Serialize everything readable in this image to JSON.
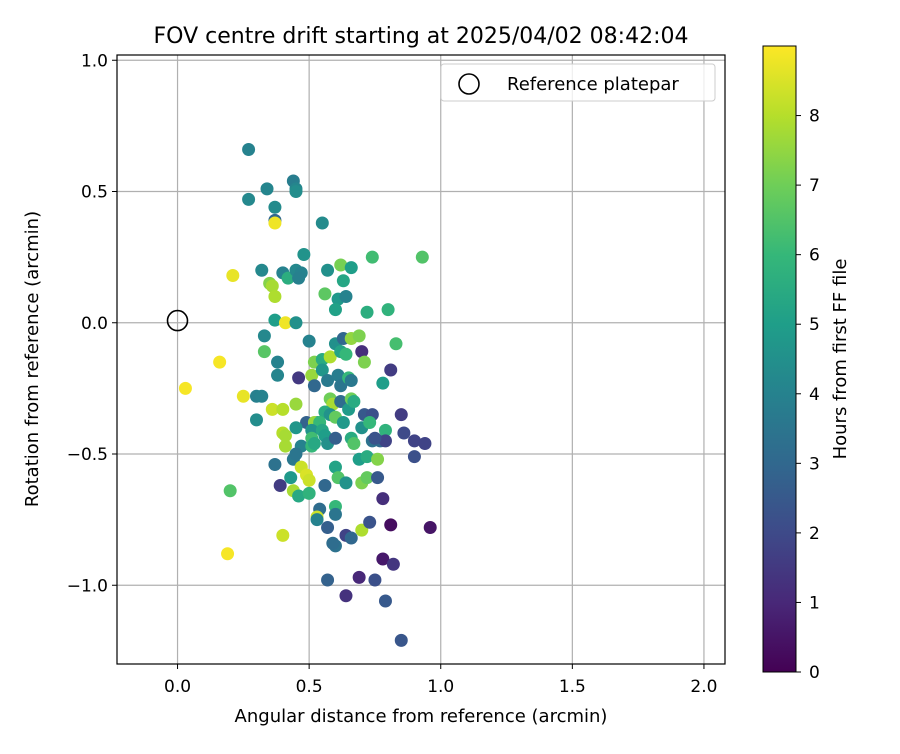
{
  "chart_data": {
    "type": "scatter",
    "title": "FOV centre drift starting at 2025/04/02 08:42:04",
    "xlabel": "Angular distance from reference (arcmin)",
    "ylabel": "Rotation from reference (arcmin)",
    "xlim": [
      -0.23,
      2.08
    ],
    "ylim": [
      -1.3,
      1.02
    ],
    "xticks": [
      0.0,
      0.5,
      1.0,
      1.5,
      2.0
    ],
    "xtick_labels": [
      "0.0",
      "0.5",
      "1.0",
      "1.5",
      "2.0"
    ],
    "yticks": [
      1.0,
      0.5,
      0.0,
      -0.5,
      -1.0
    ],
    "ytick_labels": [
      "1.0",
      "0.5",
      "0.0",
      "−0.5",
      "−1.0"
    ],
    "grid": true,
    "legend": {
      "location": "top-right",
      "entries": [
        "Reference platepar"
      ]
    },
    "reference_point": {
      "x": 0.0,
      "y": 0.0,
      "marker": "open-circle"
    },
    "colorbar": {
      "label": "Hours from first FF file",
      "colormap": "viridis",
      "range": [
        0,
        9
      ],
      "ticks": [
        0,
        1,
        2,
        3,
        4,
        5,
        6,
        7,
        8
      ],
      "tick_labels": [
        "0",
        "1",
        "2",
        "3",
        "4",
        "5",
        "6",
        "7",
        "8"
      ]
    },
    "points": [
      {
        "x": 0.27,
        "y": 0.66,
        "c": 4.0
      },
      {
        "x": 0.27,
        "y": 0.47,
        "c": 4.2
      },
      {
        "x": 0.34,
        "y": 0.51,
        "c": 4.1
      },
      {
        "x": 0.37,
        "y": 0.44,
        "c": 4.3
      },
      {
        "x": 0.37,
        "y": 0.39,
        "c": 3.0
      },
      {
        "x": 0.37,
        "y": 0.38,
        "c": 8.8
      },
      {
        "x": 0.44,
        "y": 0.54,
        "c": 3.8
      },
      {
        "x": 0.45,
        "y": 0.51,
        "c": 4.1
      },
      {
        "x": 0.45,
        "y": 0.5,
        "c": 4.4
      },
      {
        "x": 0.55,
        "y": 0.38,
        "c": 4.3
      },
      {
        "x": 0.48,
        "y": 0.26,
        "c": 4.6
      },
      {
        "x": 0.74,
        "y": 0.25,
        "c": 6.2
      },
      {
        "x": 0.93,
        "y": 0.25,
        "c": 6.5
      },
      {
        "x": 0.21,
        "y": 0.18,
        "c": 8.7
      },
      {
        "x": 0.32,
        "y": 0.2,
        "c": 4.2
      },
      {
        "x": 0.35,
        "y": 0.15,
        "c": 7.3
      },
      {
        "x": 0.36,
        "y": 0.14,
        "c": 7.8
      },
      {
        "x": 0.37,
        "y": 0.1,
        "c": 7.9
      },
      {
        "x": 0.4,
        "y": 0.19,
        "c": 4.0
      },
      {
        "x": 0.42,
        "y": 0.17,
        "c": 5.6
      },
      {
        "x": 0.45,
        "y": 0.2,
        "c": 4.2
      },
      {
        "x": 0.47,
        "y": 0.19,
        "c": 4.0
      },
      {
        "x": 0.46,
        "y": 0.17,
        "c": 3.9
      },
      {
        "x": 0.57,
        "y": 0.2,
        "c": 4.5
      },
      {
        "x": 0.62,
        "y": 0.22,
        "c": 7.1
      },
      {
        "x": 0.66,
        "y": 0.21,
        "c": 5.0
      },
      {
        "x": 0.63,
        "y": 0.16,
        "c": 5.3
      },
      {
        "x": 0.56,
        "y": 0.11,
        "c": 6.7
      },
      {
        "x": 0.61,
        "y": 0.09,
        "c": 4.8
      },
      {
        "x": 0.64,
        "y": 0.1,
        "c": 4.0
      },
      {
        "x": 0.6,
        "y": 0.05,
        "c": 5.1
      },
      {
        "x": 0.72,
        "y": 0.04,
        "c": 5.6
      },
      {
        "x": 0.8,
        "y": 0.05,
        "c": 5.8
      },
      {
        "x": 0.37,
        "y": 0.01,
        "c": 5.0
      },
      {
        "x": 0.41,
        "y": 0.0,
        "c": 8.8
      },
      {
        "x": 0.45,
        "y": 0.0,
        "c": 4.5
      },
      {
        "x": 0.33,
        "y": -0.05,
        "c": 4.2
      },
      {
        "x": 0.5,
        "y": -0.07,
        "c": 4.0
      },
      {
        "x": 0.33,
        "y": -0.11,
        "c": 6.6
      },
      {
        "x": 0.6,
        "y": -0.08,
        "c": 4.5
      },
      {
        "x": 0.63,
        "y": -0.06,
        "c": 3.0
      },
      {
        "x": 0.66,
        "y": -0.06,
        "c": 7.5
      },
      {
        "x": 0.69,
        "y": -0.05,
        "c": 7.2
      },
      {
        "x": 0.83,
        "y": -0.08,
        "c": 6.3
      },
      {
        "x": 0.16,
        "y": -0.15,
        "c": 8.9
      },
      {
        "x": 0.38,
        "y": -0.15,
        "c": 4.0
      },
      {
        "x": 0.38,
        "y": -0.2,
        "c": 4.1
      },
      {
        "x": 0.52,
        "y": -0.15,
        "c": 7.2
      },
      {
        "x": 0.55,
        "y": -0.14,
        "c": 5.5
      },
      {
        "x": 0.58,
        "y": -0.13,
        "c": 7.9
      },
      {
        "x": 0.62,
        "y": -0.11,
        "c": 5.2
      },
      {
        "x": 0.64,
        "y": -0.12,
        "c": 6.0
      },
      {
        "x": 0.7,
        "y": -0.11,
        "c": 1.2
      },
      {
        "x": 0.71,
        "y": -0.15,
        "c": 7.2
      },
      {
        "x": 0.81,
        "y": -0.18,
        "c": 1.6
      },
      {
        "x": 0.51,
        "y": -0.2,
        "c": 7.6
      },
      {
        "x": 0.55,
        "y": -0.18,
        "c": 4.7
      },
      {
        "x": 0.46,
        "y": -0.21,
        "c": 1.5
      },
      {
        "x": 0.52,
        "y": -0.24,
        "c": 3.0
      },
      {
        "x": 0.57,
        "y": -0.22,
        "c": 3.7
      },
      {
        "x": 0.61,
        "y": -0.2,
        "c": 3.8
      },
      {
        "x": 0.62,
        "y": -0.24,
        "c": 3.5
      },
      {
        "x": 0.65,
        "y": -0.21,
        "c": 6.0
      },
      {
        "x": 0.66,
        "y": -0.22,
        "c": 3.6
      },
      {
        "x": 0.78,
        "y": -0.23,
        "c": 5.0
      },
      {
        "x": 0.03,
        "y": -0.25,
        "c": 8.9
      },
      {
        "x": 0.25,
        "y": -0.28,
        "c": 8.7
      },
      {
        "x": 0.3,
        "y": -0.28,
        "c": 3.9
      },
      {
        "x": 0.32,
        "y": -0.28,
        "c": 4.0
      },
      {
        "x": 0.3,
        "y": -0.37,
        "c": 4.4
      },
      {
        "x": 0.36,
        "y": -0.33,
        "c": 8.3
      },
      {
        "x": 0.4,
        "y": -0.33,
        "c": 8.0
      },
      {
        "x": 0.45,
        "y": -0.31,
        "c": 7.6
      },
      {
        "x": 0.58,
        "y": -0.29,
        "c": 7.0
      },
      {
        "x": 0.59,
        "y": -0.31,
        "c": 7.8
      },
      {
        "x": 0.62,
        "y": -0.3,
        "c": 3.2
      },
      {
        "x": 0.65,
        "y": -0.33,
        "c": 4.9
      },
      {
        "x": 0.66,
        "y": -0.29,
        "c": 7.0
      },
      {
        "x": 0.67,
        "y": -0.3,
        "c": 5.5
      },
      {
        "x": 0.71,
        "y": -0.35,
        "c": 2.5
      },
      {
        "x": 0.74,
        "y": -0.35,
        "c": 2.2
      },
      {
        "x": 0.49,
        "y": -0.38,
        "c": 2.8
      },
      {
        "x": 0.53,
        "y": -0.38,
        "c": 4.7
      },
      {
        "x": 0.56,
        "y": -0.34,
        "c": 5.5
      },
      {
        "x": 0.58,
        "y": -0.35,
        "c": 4.6
      },
      {
        "x": 0.6,
        "y": -0.36,
        "c": 6.8
      },
      {
        "x": 0.52,
        "y": -0.38,
        "c": 7.6
      },
      {
        "x": 0.54,
        "y": -0.38,
        "c": 6.0
      },
      {
        "x": 0.4,
        "y": -0.42,
        "c": 8.0
      },
      {
        "x": 0.41,
        "y": -0.43,
        "c": 7.8
      },
      {
        "x": 0.45,
        "y": -0.4,
        "c": 4.7
      },
      {
        "x": 0.51,
        "y": -0.41,
        "c": 4.6
      },
      {
        "x": 0.51,
        "y": -0.44,
        "c": 6.2
      },
      {
        "x": 0.55,
        "y": -0.41,
        "c": 5.3
      },
      {
        "x": 0.56,
        "y": -0.43,
        "c": 5.0
      },
      {
        "x": 0.57,
        "y": -0.46,
        "c": 4.5
      },
      {
        "x": 0.6,
        "y": -0.44,
        "c": 2.7
      },
      {
        "x": 0.63,
        "y": -0.38,
        "c": 4.8
      },
      {
        "x": 0.7,
        "y": -0.4,
        "c": 4.5
      },
      {
        "x": 0.73,
        "y": -0.38,
        "c": 6.0
      },
      {
        "x": 0.77,
        "y": -0.45,
        "c": 3.0
      },
      {
        "x": 0.79,
        "y": -0.41,
        "c": 5.8
      },
      {
        "x": 0.79,
        "y": -0.45,
        "c": 1.8
      },
      {
        "x": 0.85,
        "y": -0.35,
        "c": 1.6
      },
      {
        "x": 0.86,
        "y": -0.42,
        "c": 2.0
      },
      {
        "x": 0.9,
        "y": -0.45,
        "c": 1.8
      },
      {
        "x": 0.94,
        "y": -0.46,
        "c": 1.8
      },
      {
        "x": 0.41,
        "y": -0.47,
        "c": 7.8
      },
      {
        "x": 0.47,
        "y": -0.47,
        "c": 4.0
      },
      {
        "x": 0.51,
        "y": -0.47,
        "c": 6.0
      },
      {
        "x": 0.52,
        "y": -0.46,
        "c": 5.4
      },
      {
        "x": 0.66,
        "y": -0.44,
        "c": 5.5
      },
      {
        "x": 0.67,
        "y": -0.46,
        "c": 6.5
      },
      {
        "x": 0.74,
        "y": -0.45,
        "c": 3.4
      },
      {
        "x": 0.75,
        "y": -0.44,
        "c": 2.3
      },
      {
        "x": 0.37,
        "y": -0.54,
        "c": 3.4
      },
      {
        "x": 0.44,
        "y": -0.52,
        "c": 3.6
      },
      {
        "x": 0.45,
        "y": -0.5,
        "c": 3.5
      },
      {
        "x": 0.69,
        "y": -0.52,
        "c": 5.0
      },
      {
        "x": 0.72,
        "y": -0.51,
        "c": 5.5
      },
      {
        "x": 0.76,
        "y": -0.52,
        "c": 7.3
      },
      {
        "x": 0.9,
        "y": -0.51,
        "c": 2.2
      },
      {
        "x": 0.47,
        "y": -0.55,
        "c": 8.3
      },
      {
        "x": 0.49,
        "y": -0.58,
        "c": 8.5
      },
      {
        "x": 0.6,
        "y": -0.55,
        "c": 5.2
      },
      {
        "x": 0.43,
        "y": -0.59,
        "c": 4.8
      },
      {
        "x": 0.5,
        "y": -0.6,
        "c": 8.3
      },
      {
        "x": 0.61,
        "y": -0.59,
        "c": 6.5
      },
      {
        "x": 0.64,
        "y": -0.61,
        "c": 4.6
      },
      {
        "x": 0.7,
        "y": -0.61,
        "c": 7.2
      },
      {
        "x": 0.72,
        "y": -0.59,
        "c": 6.8
      },
      {
        "x": 0.76,
        "y": -0.59,
        "c": 2.5
      },
      {
        "x": 0.2,
        "y": -0.64,
        "c": 6.5
      },
      {
        "x": 0.39,
        "y": -0.62,
        "c": 1.6
      },
      {
        "x": 0.44,
        "y": -0.64,
        "c": 7.8
      },
      {
        "x": 0.46,
        "y": -0.66,
        "c": 5.4
      },
      {
        "x": 0.5,
        "y": -0.65,
        "c": 5.8
      },
      {
        "x": 0.56,
        "y": -0.62,
        "c": 3.0
      },
      {
        "x": 0.78,
        "y": -0.67,
        "c": 1.2
      },
      {
        "x": 0.54,
        "y": -0.71,
        "c": 3.2
      },
      {
        "x": 0.6,
        "y": -0.7,
        "c": 6.0
      },
      {
        "x": 0.6,
        "y": -0.73,
        "c": 3.5
      },
      {
        "x": 0.53,
        "y": -0.74,
        "c": 8.3
      },
      {
        "x": 0.53,
        "y": -0.75,
        "c": 4.0
      },
      {
        "x": 0.57,
        "y": -0.78,
        "c": 2.7
      },
      {
        "x": 0.64,
        "y": -0.81,
        "c": 1.8
      },
      {
        "x": 0.66,
        "y": -0.82,
        "c": 3.0
      },
      {
        "x": 0.7,
        "y": -0.79,
        "c": 7.9
      },
      {
        "x": 0.73,
        "y": -0.76,
        "c": 2.3
      },
      {
        "x": 0.81,
        "y": -0.77,
        "c": 0.3
      },
      {
        "x": 0.96,
        "y": -0.78,
        "c": 0.5
      },
      {
        "x": 0.4,
        "y": -0.81,
        "c": 8.3
      },
      {
        "x": 0.6,
        "y": -0.85,
        "c": 3.4
      },
      {
        "x": 0.59,
        "y": -0.84,
        "c": 3.2
      },
      {
        "x": 0.19,
        "y": -0.88,
        "c": 8.9
      },
      {
        "x": 0.78,
        "y": -0.9,
        "c": 0.6
      },
      {
        "x": 0.82,
        "y": -0.92,
        "c": 1.4
      },
      {
        "x": 0.57,
        "y": -0.98,
        "c": 2.8
      },
      {
        "x": 0.69,
        "y": -0.97,
        "c": 1.0
      },
      {
        "x": 0.75,
        "y": -0.98,
        "c": 2.2
      },
      {
        "x": 0.64,
        "y": -1.04,
        "c": 1.3
      },
      {
        "x": 0.79,
        "y": -1.06,
        "c": 2.5
      },
      {
        "x": 0.85,
        "y": -1.21,
        "c": 2.4
      }
    ]
  }
}
